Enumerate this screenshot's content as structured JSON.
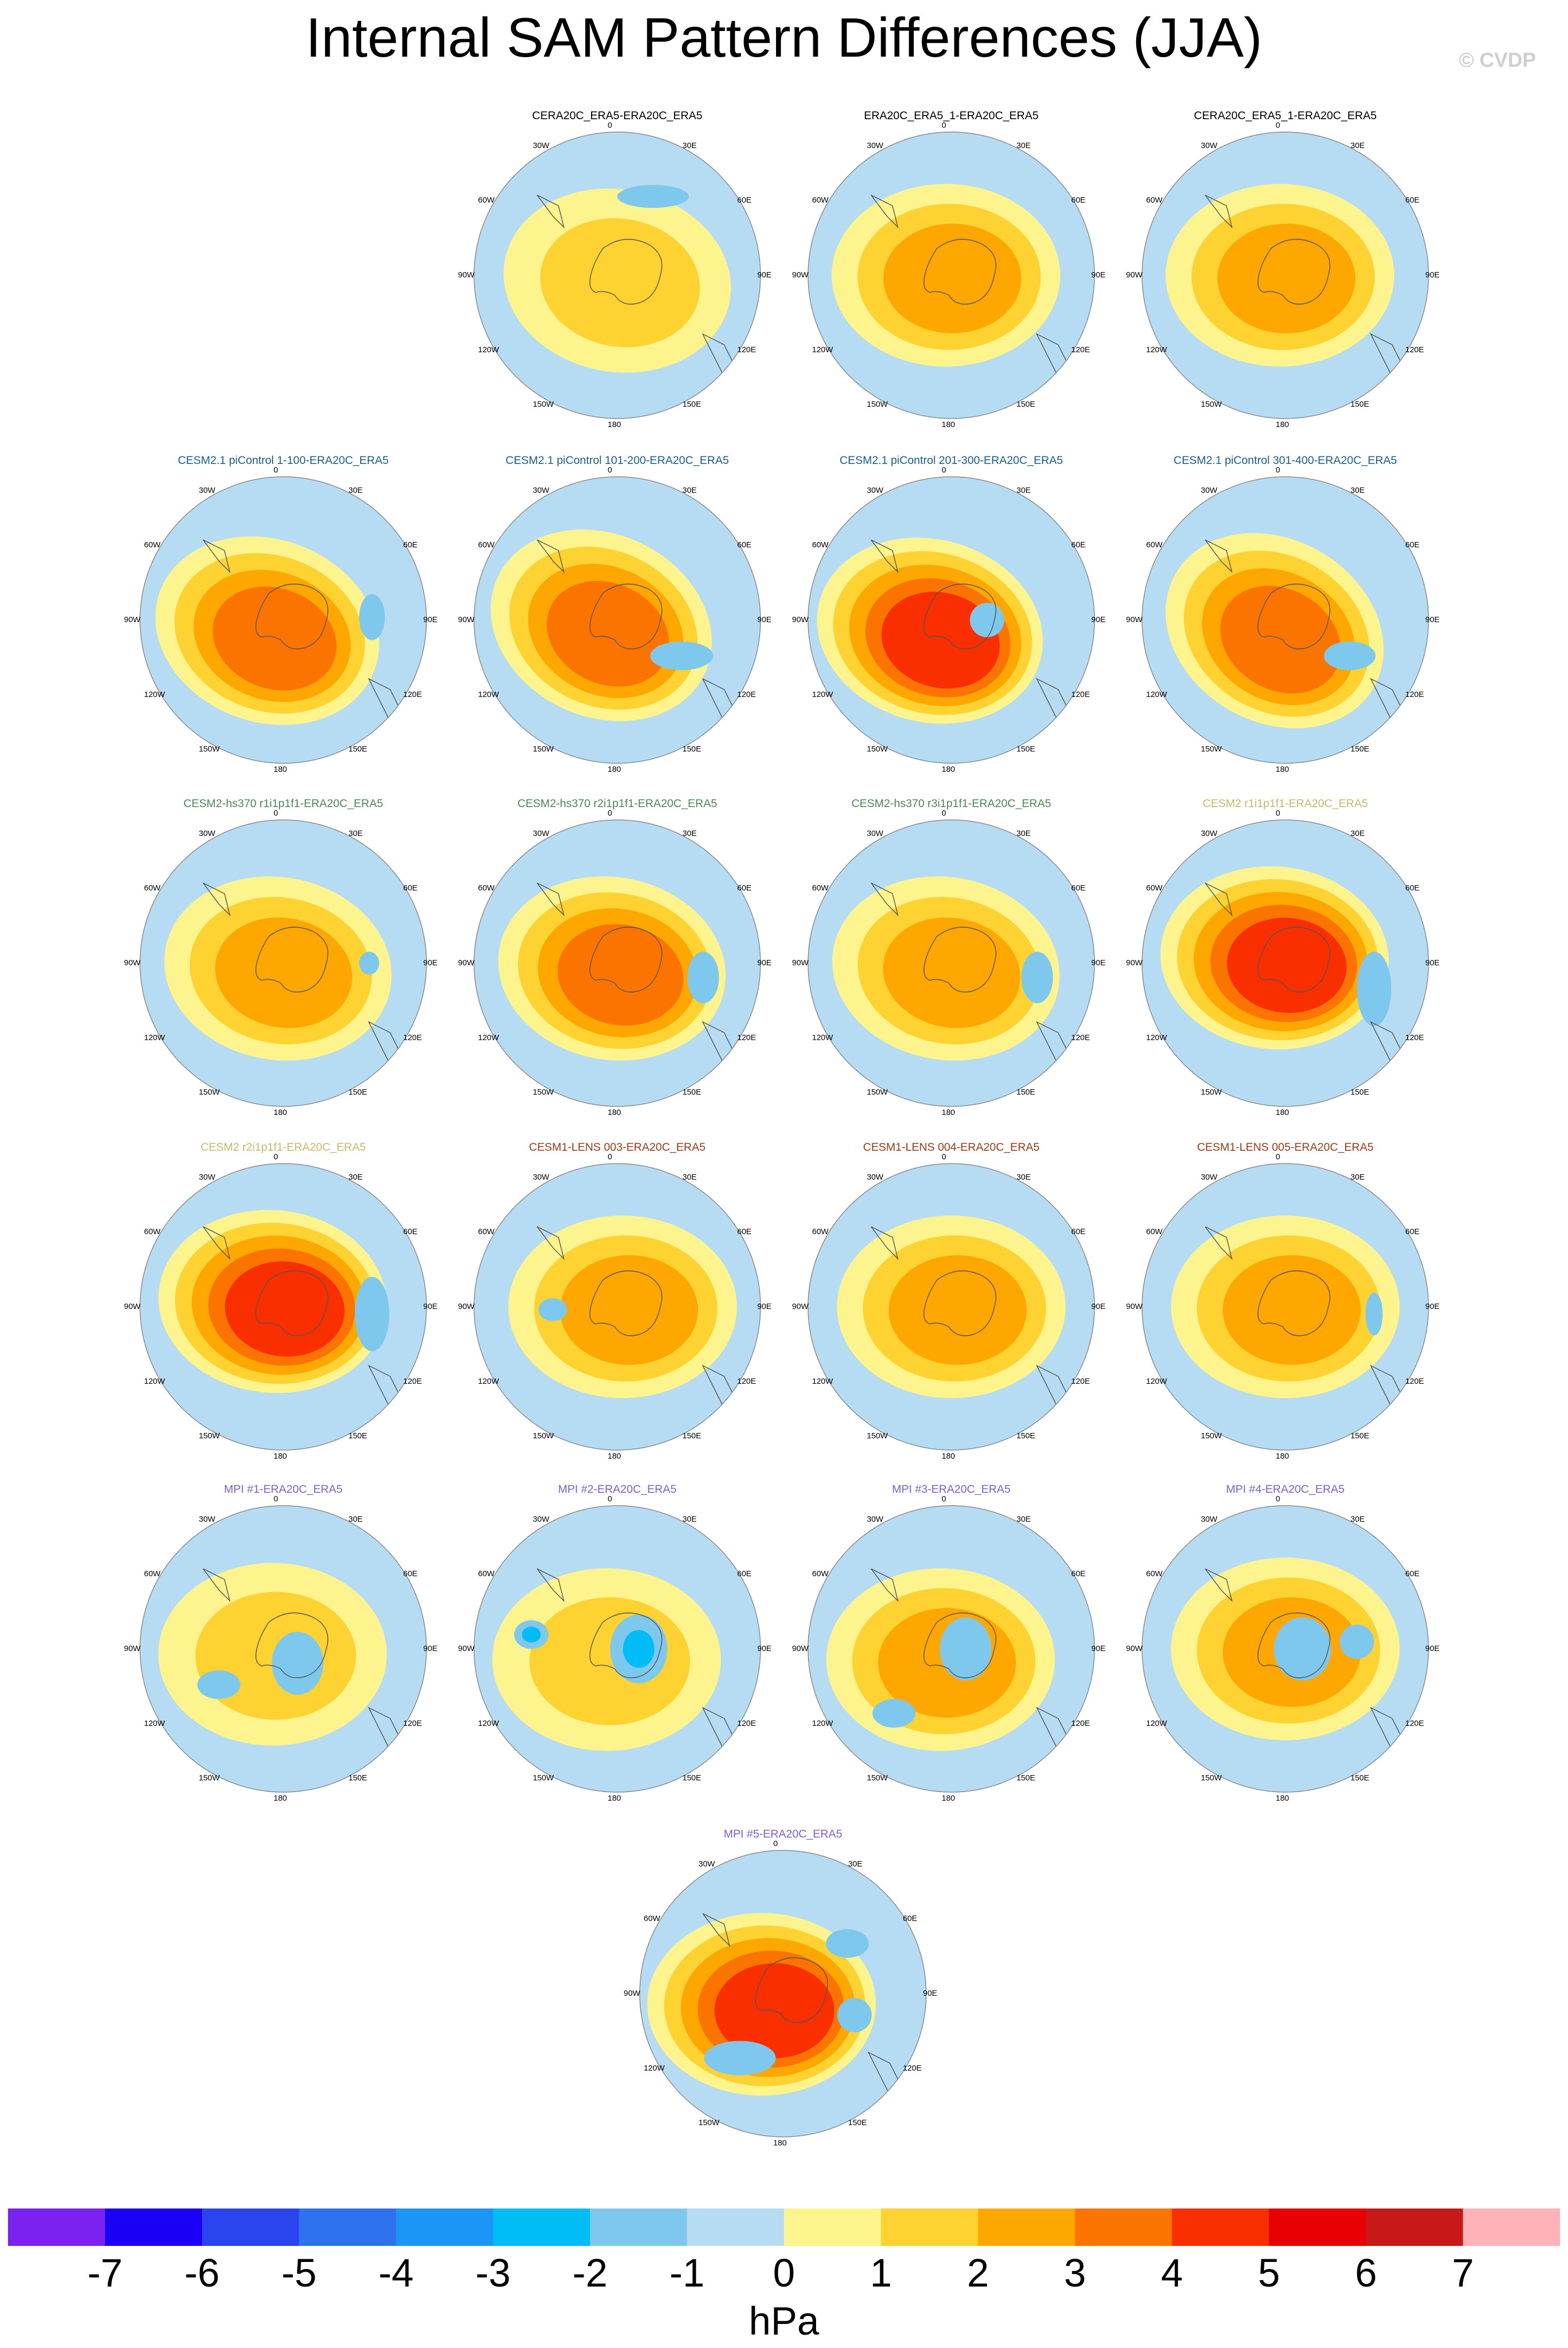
{
  "title": "Internal SAM Pattern Differences (JJA)",
  "credit": "© CVDP",
  "lon_labels": [
    "0",
    "30E",
    "60E",
    "90E",
    "120E",
    "150E",
    "180",
    "150W",
    "120W",
    "90W",
    "60W",
    "30W"
  ],
  "colors": {
    "ocean_neutral": "#b5dcf2",
    "low_positive": "#fef48e",
    "title_obs": "#000000",
    "title_cesm21": "#1a5f8a",
    "title_cesm2hs": "#4a8a55",
    "title_cesm2": "#c9b86a",
    "title_lens": "#9a3d17",
    "title_mpi": "#7e5fd0"
  },
  "chart_data": {
    "type": "heatmap",
    "projection": "south polar stereographic",
    "variable": "SAM pattern difference (JJA)",
    "units": "hPa",
    "levels": [
      -7,
      -6,
      -5,
      -4,
      -3,
      -2,
      -1,
      0,
      1,
      2,
      3,
      4,
      5,
      6,
      7
    ],
    "colorbar_colors": [
      "#7b22f0",
      "#1a00f5",
      "#2a44f0",
      "#2f72ee",
      "#1c96f6",
      "#00bdf5",
      "#7ec8ee",
      "#b5dcf2",
      "#fef48e",
      "#fed230",
      "#fda700",
      "#fb7400",
      "#fa2f00",
      "#e80000",
      "#c81919",
      "#ffb3b8"
    ],
    "units_label": "hPa",
    "panels": [
      {
        "title": "CERA20C_ERA5-ERA20C_ERA5",
        "group": "obs",
        "max_positive": 2,
        "min_negative": -1
      },
      {
        "title": "ERA20C_ERA5_1-ERA20C_ERA5",
        "group": "obs",
        "max_positive": 3,
        "min_negative": -1
      },
      {
        "title": "CERA20C_ERA5_1-ERA20C_ERA5",
        "group": "obs",
        "max_positive": 3,
        "min_negative": -1
      },
      {
        "title": "CESM2.1 piControl 1-100-ERA20C_ERA5",
        "group": "cesm21",
        "max_positive": 4,
        "min_negative": -2
      },
      {
        "title": "CESM2.1 piControl 101-200-ERA20C_ERA5",
        "group": "cesm21",
        "max_positive": 4,
        "min_negative": -1
      },
      {
        "title": "CESM2.1 piControl 201-300-ERA20C_ERA5",
        "group": "cesm21",
        "max_positive": 5,
        "min_negative": -1
      },
      {
        "title": "CESM2.1 piControl 301-400-ERA20C_ERA5",
        "group": "cesm21",
        "max_positive": 4,
        "min_negative": -1
      },
      {
        "title": "CESM2-hs370 r1i1p1f1-ERA20C_ERA5",
        "group": "cesm2hs",
        "max_positive": 3,
        "min_negative": -2
      },
      {
        "title": "CESM2-hs370 r2i1p1f1-ERA20C_ERA5",
        "group": "cesm2hs",
        "max_positive": 4,
        "min_negative": -2
      },
      {
        "title": "CESM2-hs370 r3i1p1f1-ERA20C_ERA5",
        "group": "cesm2hs",
        "max_positive": 3,
        "min_negative": -2
      },
      {
        "title": "CESM2 r1i1p1f1-ERA20C_ERA5",
        "group": "cesm2",
        "max_positive": 5,
        "min_negative": -2
      },
      {
        "title": "CESM2 r2i1p1f1-ERA20C_ERA5",
        "group": "cesm2",
        "max_positive": 5,
        "min_negative": -2
      },
      {
        "title": "CESM1-LENS 003-ERA20C_ERA5",
        "group": "lens",
        "max_positive": 3,
        "min_negative": -1
      },
      {
        "title": "CESM1-LENS 004-ERA20C_ERA5",
        "group": "lens",
        "max_positive": 3,
        "min_negative": -1
      },
      {
        "title": "CESM1-LENS 005-ERA20C_ERA5",
        "group": "lens",
        "max_positive": 3,
        "min_negative": -2
      },
      {
        "title": "MPI #1-ERA20C_ERA5",
        "group": "mpi",
        "max_positive": 2,
        "min_negative": -2
      },
      {
        "title": "MPI #2-ERA20C_ERA5",
        "group": "mpi",
        "max_positive": 2,
        "min_negative": -3
      },
      {
        "title": "MPI #3-ERA20C_ERA5",
        "group": "mpi",
        "max_positive": 3,
        "min_negative": -2
      },
      {
        "title": "MPI #4-ERA20C_ERA5",
        "group": "mpi",
        "max_positive": 3,
        "min_negative": -2
      },
      {
        "title": "MPI #5-ERA20C_ERA5",
        "group": "mpi",
        "max_positive": 5,
        "min_negative": -2
      }
    ]
  }
}
